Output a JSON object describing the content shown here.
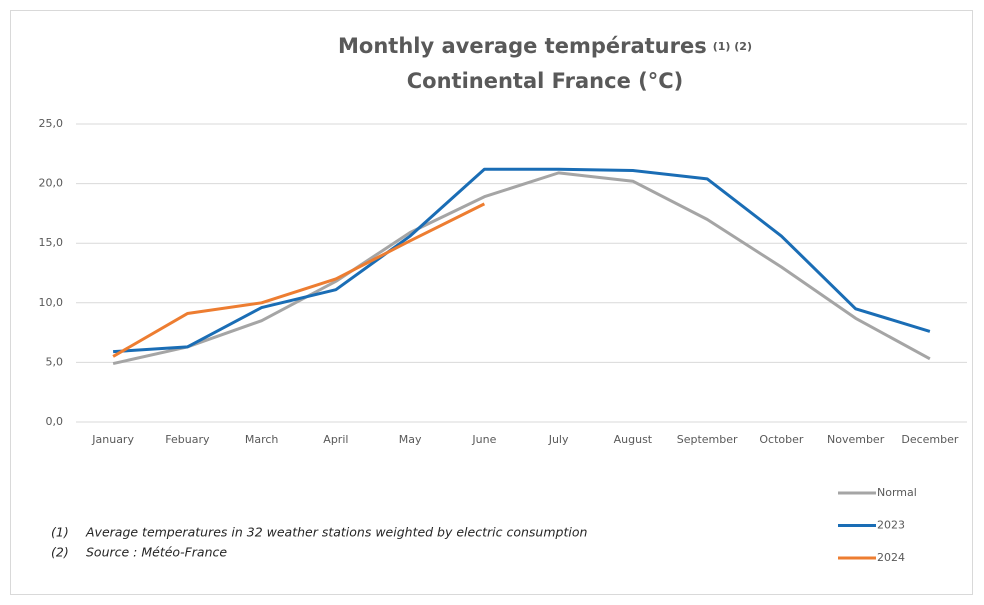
{
  "chart_data": {
    "type": "line",
    "title": "Monthly average températures",
    "title_marks": "(1) (2)",
    "subtitle": "Continental France (°C)",
    "categories": [
      "January",
      "Febuary",
      "March",
      "April",
      "May",
      "June",
      "July",
      "August",
      "September",
      "October",
      "November",
      "December"
    ],
    "series": [
      {
        "name": "Normal",
        "color": "#a5a5a5",
        "values": [
          4.9,
          6.3,
          8.5,
          11.8,
          15.9,
          18.9,
          20.9,
          20.2,
          17.0,
          13.0,
          8.7,
          5.3
        ]
      },
      {
        "name": "2023",
        "color": "#1a6db5",
        "values": [
          5.9,
          6.3,
          9.6,
          11.1,
          15.6,
          21.2,
          21.2,
          21.1,
          20.4,
          15.6,
          9.5,
          7.6
        ]
      },
      {
        "name": "2024",
        "color": "#ed7d31",
        "values": [
          5.5,
          9.1,
          10.0,
          12.0,
          15.2,
          18.3,
          null,
          null,
          null,
          null,
          null,
          null
        ]
      }
    ],
    "ylim": [
      0,
      25
    ],
    "yticks": [
      {
        "value": 0,
        "label": "0,0"
      },
      {
        "value": 5,
        "label": "5,0"
      },
      {
        "value": 10,
        "label": "10,0"
      },
      {
        "value": 15,
        "label": "15,0"
      },
      {
        "value": 20,
        "label": "20,0"
      },
      {
        "value": 25,
        "label": "25,0"
      }
    ],
    "grid": true,
    "legend": "bottom-right",
    "notes": [
      {
        "marker": "(1)",
        "text": "Average temperatures in 32 weather stations weighted by electric consumption"
      },
      {
        "marker": "(2)",
        "text": "Source : Météo-France"
      }
    ]
  }
}
